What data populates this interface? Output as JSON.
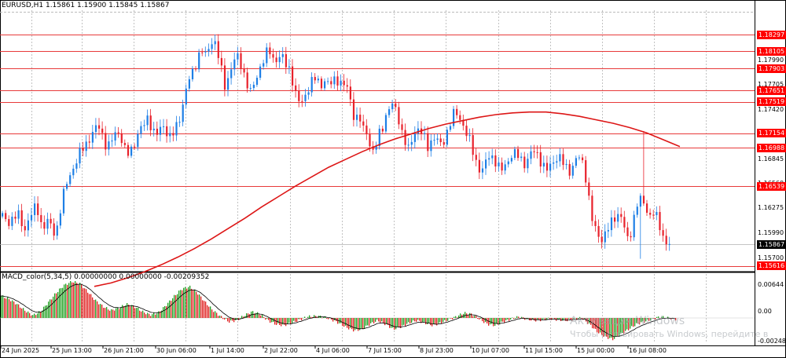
{
  "symbol_header": "EURUSD,H1  1.15861 1.15900 1.15845 1.15867",
  "macd_header": "MACD_color(5,34,5) 0.00000000 0.00000000 -0.00209352",
  "colors": {
    "bull": "#1e7fe6",
    "bear": "#e8212b",
    "ma": "#dd1616",
    "hline": "#e83a3a",
    "label_bg": "#ff0000",
    "macd_pos": "#22a022",
    "macd_neg": "#e02020",
    "signal": "#000000",
    "grid": "#9a9a9a"
  },
  "price_axis": {
    "labels": [
      "1.17990",
      "1.17705",
      "1.17420",
      "1.17130",
      "1.16845",
      "1.16560",
      "1.16275",
      "1.15990",
      "1.15700"
    ]
  },
  "red_levels": [
    "1.18297",
    "1.18105",
    "1.17903",
    "1.17651",
    "1.17519",
    "1.17154",
    "1.16988",
    "1.16539",
    "1.15616"
  ],
  "current_price": "1.15867",
  "macd_axis": {
    "labels": [
      "0.00644",
      "0.00",
      "-0.00248"
    ]
  },
  "time_axis": [
    "24 Jun 2025",
    "25 Jun 13:00",
    "26 Jun 21:00",
    "30 Jun 06:00",
    "1 Jul 14:00",
    "2 Jul 22:00",
    "4 Jul 06:00",
    "7 Jul 15:00",
    "8 Jul 23:00",
    "10 Jul 07:00",
    "11 Jul 15:00",
    "15 Jul 00:00",
    "16 Jul 08:00"
  ],
  "watermark": {
    "line1": "Активация Windows",
    "line2": "Чтобы активировать Windows, перейдите в"
  },
  "chart_data": {
    "type": "candlestick",
    "title": "EURUSD,H1",
    "ylim": [
      1.1556,
      1.1858
    ],
    "close_path": [
      1.162,
      1.1612,
      1.1615,
      1.1618,
      1.1622,
      1.161,
      1.1605,
      1.1618,
      1.1625,
      1.163,
      1.1612,
      1.1608,
      1.1615,
      1.1602,
      1.16,
      1.1625,
      1.1645,
      1.166,
      1.1672,
      1.168,
      1.169,
      1.1698,
      1.1705,
      1.1712,
      1.1718,
      1.1725,
      1.1715,
      1.1702,
      1.17,
      1.1712,
      1.172,
      1.171,
      1.1695,
      1.169,
      1.17,
      1.1712,
      1.172,
      1.1725,
      1.1735,
      1.1722,
      1.1712,
      1.1718,
      1.1725,
      1.1716,
      1.171,
      1.1718,
      1.173,
      1.1748,
      1.1768,
      1.178,
      1.179,
      1.1805,
      1.1812,
      1.1805,
      1.1815,
      1.1828,
      1.1812,
      1.179,
      1.177,
      1.1782,
      1.1795,
      1.1805,
      1.1798,
      1.1785,
      1.177,
      1.176,
      1.1778,
      1.179,
      1.18,
      1.1808,
      1.181,
      1.1798,
      1.1805,
      1.1802,
      1.1795,
      1.179,
      1.177,
      1.175,
      1.1752,
      1.176,
      1.177,
      1.1776,
      1.178,
      1.177,
      1.1778,
      1.177,
      1.1775,
      1.178,
      1.1775,
      1.177,
      1.1768,
      1.175,
      1.173,
      1.1735,
      1.172,
      1.1718,
      1.17,
      1.169,
      1.1712,
      1.1722,
      1.1735,
      1.1745,
      1.1748,
      1.174,
      1.172,
      1.1705,
      1.1695,
      1.1712,
      1.1722,
      1.1718,
      1.171,
      1.17,
      1.1708,
      1.1712,
      1.17,
      1.1705,
      1.1718,
      1.173,
      1.174,
      1.1735,
      1.1728,
      1.1715,
      1.1705,
      1.169,
      1.1678,
      1.167,
      1.168,
      1.169,
      1.1688,
      1.168,
      1.167,
      1.1678,
      1.1685,
      1.1692,
      1.169,
      1.1688,
      1.168,
      1.1685,
      1.1692,
      1.1695,
      1.1688,
      1.1678,
      1.1672,
      1.1678,
      1.1685,
      1.169,
      1.1682,
      1.1675,
      1.1672,
      1.168,
      1.1688,
      1.1685,
      1.167,
      1.164,
      1.161,
      1.16,
      1.1592,
      1.1598,
      1.1605,
      1.1612,
      1.162,
      1.1625,
      1.161,
      1.159,
      1.1602,
      1.1625,
      1.164,
      1.1635,
      1.1628,
      1.162,
      1.1625,
      1.1612,
      1.16,
      1.159,
      1.1587
    ],
    "ma_path": [
      1.1538,
      1.1542,
      1.1548,
      1.1555,
      1.1563,
      1.1572,
      1.1582,
      1.1593,
      1.1605,
      1.1617,
      1.163,
      1.1642,
      1.1654,
      1.1665,
      1.1676,
      1.1685,
      1.1694,
      1.1702,
      1.1709,
      1.1715,
      1.1721,
      1.1726,
      1.173,
      1.1734,
      1.1737,
      1.1739,
      1.174,
      1.174,
      1.1738,
      1.1735,
      1.1731,
      1.1727,
      1.1722,
      1.1716,
      1.1708,
      1.17
    ],
    "macd_hist_path": [
      0.0035,
      0.003,
      0.0022,
      0.0012,
      0.0004,
      0.001,
      0.0025,
      0.004,
      0.0052,
      0.0058,
      0.0055,
      0.0042,
      0.0028,
      0.0018,
      0.0012,
      0.0016,
      0.0022,
      0.0018,
      0.001,
      0.0005,
      0.0008,
      0.002,
      0.0034,
      0.0046,
      0.005,
      0.004,
      0.0025,
      0.0012,
      0.0002,
      -0.0006,
      -0.0004,
      0.0004,
      0.001,
      0.0006,
      -0.0004,
      -0.001,
      -0.0012,
      -0.0008,
      -0.0003,
      0.0002,
      0.0003,
      0.0002,
      -0.0002,
      -0.0008,
      -0.0015,
      -0.002,
      -0.0018,
      -0.001,
      -0.0004,
      -0.001,
      -0.0018,
      -0.0014,
      -0.0008,
      -0.0004,
      -0.0008,
      -0.0012,
      -0.0008,
      -0.0003,
      0.0002,
      0.0008,
      0.0006,
      -0.0002,
      -0.001,
      -0.0012,
      -0.0006,
      -0.0002,
      0.0002,
      -0.0002,
      -0.0004,
      -0.0003,
      -0.0001,
      -0.0003,
      -0.0004,
      -0.0002,
      0.0,
      -0.001,
      -0.0022,
      -0.003,
      -0.0034,
      -0.0026,
      -0.0018,
      -0.001,
      -0.0006,
      -0.0002,
      0.0002,
      0.0,
      -0.0002
    ],
    "macd_ylim": [
      -0.004,
      0.007
    ]
  }
}
